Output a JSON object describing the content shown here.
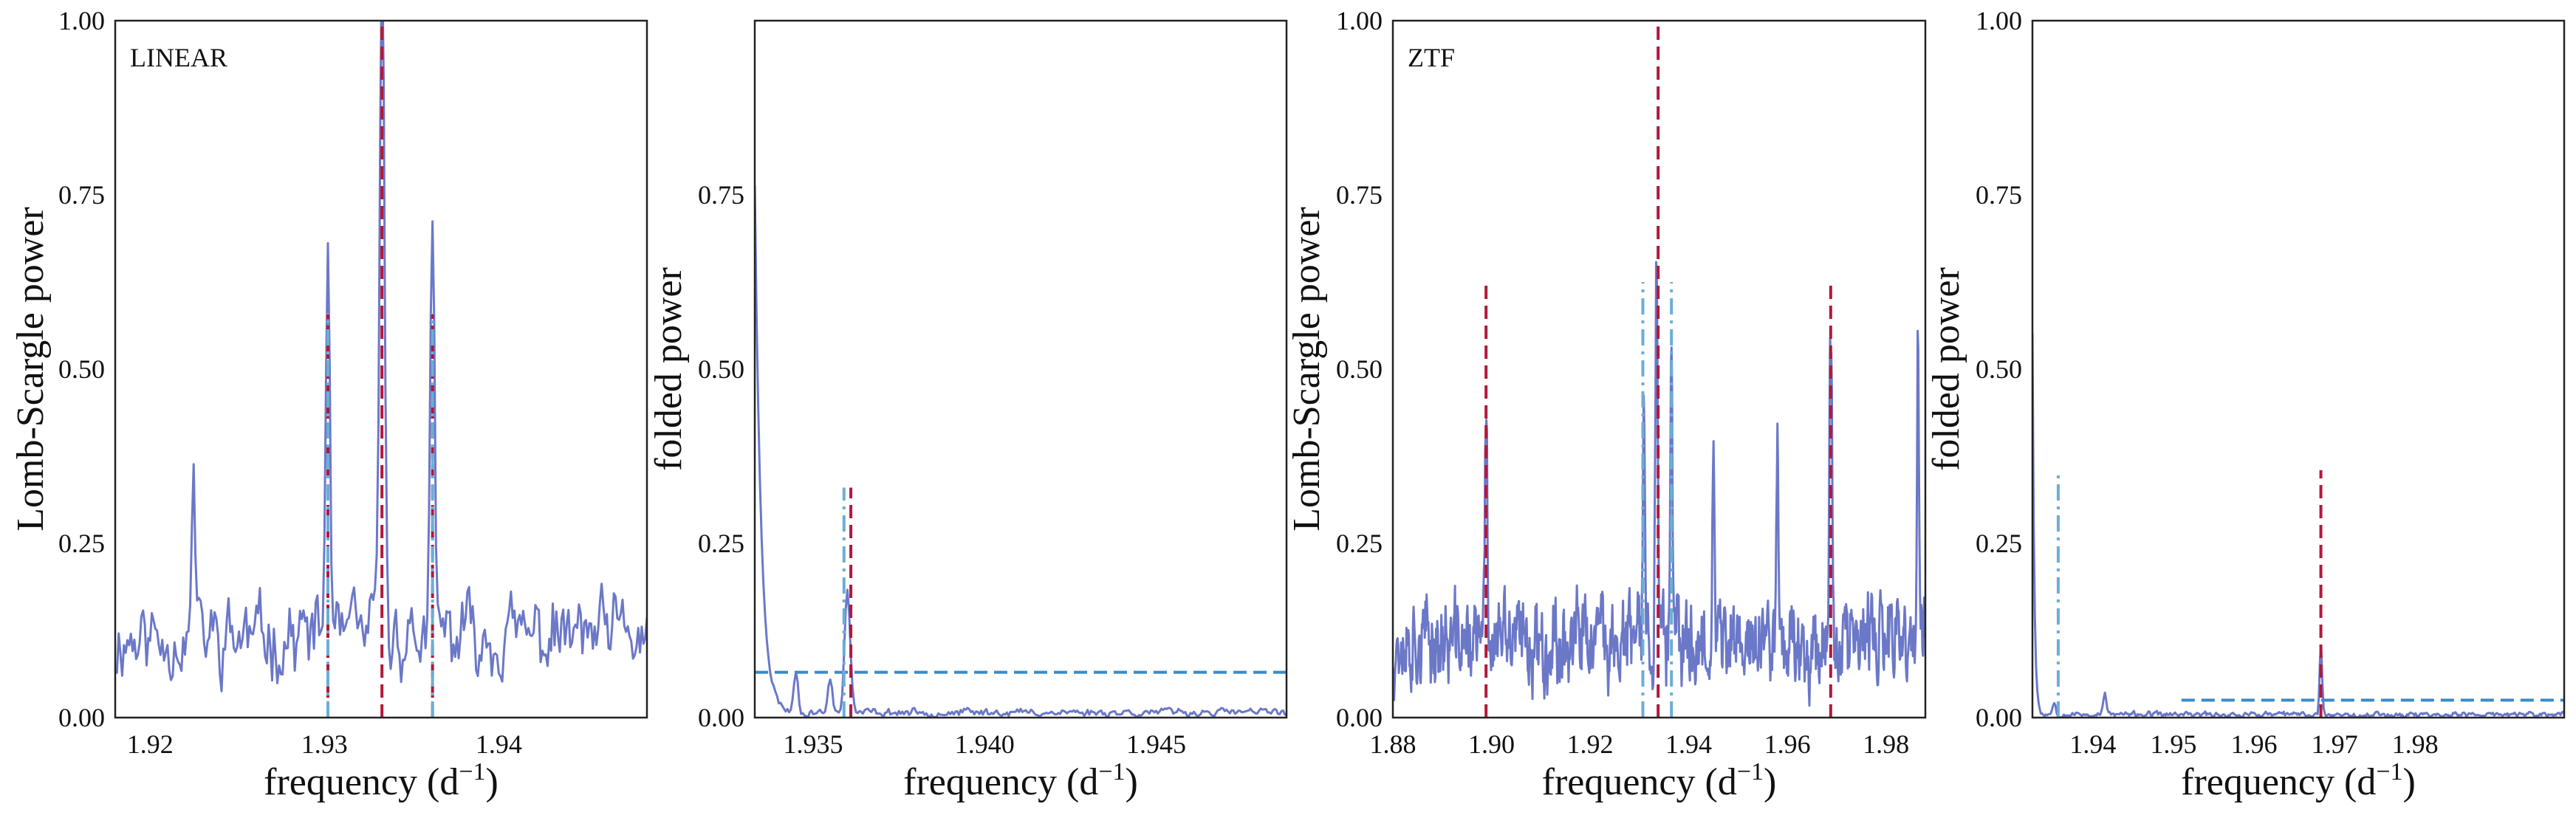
{
  "colors": {
    "series": "#6b78c8",
    "main_line": "#b2183a",
    "alias_line": "#6aaed6",
    "threshold": "#3a8bc8",
    "frame": "#222222"
  },
  "chart_data": [
    {
      "type": "line",
      "panel_label": "LINEAR",
      "xlabel": "frequency (d",
      "xlabel_sup": "−1",
      "xlabel_tail": ")",
      "ylabel": "Lomb-Scargle power",
      "xlim": [
        1.918,
        1.9485
      ],
      "ylim": [
        0,
        1.0
      ],
      "xticks": [
        1.92,
        1.93,
        1.94
      ],
      "xtick_labels": [
        "1.92",
        "1.93",
        "1.94"
      ],
      "yticks": [
        0,
        0.25,
        0.5,
        0.75,
        1.0
      ],
      "ytick_labels": [
        "0.00",
        "0.25",
        "0.50",
        "0.75",
        "1.00"
      ],
      "grid": false,
      "series": [
        {
          "style": "solid",
          "baseline": 0.08,
          "noise": 0.12,
          "seed": 11,
          "step": 0.0001,
          "peaks": [
            {
              "x": 1.9302,
              "h": 0.55,
              "w": 0.00012
            },
            {
              "x": 1.9333,
              "h": 0.97,
              "w": 0.00014
            },
            {
              "x": 1.9362,
              "h": 0.55,
              "w": 0.00012
            },
            {
              "x": 1.9225,
              "h": 0.23,
              "w": 0.0001
            }
          ]
        }
      ],
      "vlines": [
        {
          "x": 1.9333,
          "ymax": 1.0,
          "style": "dashed",
          "color": "main_line"
        },
        {
          "x": 1.9302,
          "ymax": 0.58,
          "style": "dashed",
          "color": "main_line"
        },
        {
          "x": 1.9362,
          "ymax": 0.58,
          "style": "dashed",
          "color": "main_line"
        },
        {
          "x": 1.9302,
          "ymax": 0.58,
          "style": "dashdot",
          "color": "alias_line"
        },
        {
          "x": 1.9362,
          "ymax": 0.58,
          "style": "dashdot",
          "color": "alias_line"
        }
      ],
      "hlines": []
    },
    {
      "type": "line",
      "panel_label": "",
      "xlabel": "frequency (d",
      "xlabel_sup": "−1",
      "xlabel_tail": ")",
      "ylabel": "folded power",
      "xlim": [
        1.9333,
        1.9488
      ],
      "ylim": [
        0,
        1.0
      ],
      "xticks": [
        1.935,
        1.94,
        1.945
      ],
      "xtick_labels": [
        "1.935",
        "1.940",
        "1.945"
      ],
      "yticks": [
        0,
        0.25,
        0.5,
        0.75
      ],
      "ytick_labels": [
        "0.00",
        "0.25",
        "0.50",
        "0.75"
      ],
      "grid": false,
      "series": [
        {
          "style": "solid",
          "baseline": 0.004,
          "noise": 0.012,
          "seed": 23,
          "step": 5e-05,
          "decay": {
            "x0": 1.9333,
            "h": 0.76,
            "scale": 0.00018
          },
          "peaks": [
            {
              "x": 1.936,
              "h": 0.18,
              "w": 8e-05
            },
            {
              "x": 1.9345,
              "h": 0.06,
              "w": 6e-05
            },
            {
              "x": 1.9355,
              "h": 0.05,
              "w": 6e-05
            }
          ]
        }
      ],
      "vlines": [
        {
          "x": 1.9361,
          "ymax": 0.33,
          "style": "dashed",
          "color": "main_line"
        },
        {
          "x": 1.9359,
          "ymax": 0.33,
          "style": "dashdot",
          "color": "alias_line"
        }
      ],
      "hlines": [
        {
          "y": 0.065,
          "xmin": 1.9333,
          "xmax": 1.9488,
          "style": "dashed",
          "color": "threshold"
        }
      ]
    },
    {
      "type": "line",
      "panel_label": "ZTF",
      "xlabel": "frequency (d",
      "xlabel_sup": "−1",
      "xlabel_tail": ")",
      "ylabel": "Lomb-Scargle power",
      "xlim": [
        1.88,
        1.988
      ],
      "ylim": [
        0,
        1.0
      ],
      "xticks": [
        1.88,
        1.9,
        1.92,
        1.94,
        1.96,
        1.98
      ],
      "xtick_labels": [
        "1.88",
        "1.90",
        "1.92",
        "1.94",
        "1.96",
        "1.98"
      ],
      "yticks": [
        0,
        0.25,
        0.5,
        0.75,
        1.0
      ],
      "ytick_labels": [
        "0.00",
        "0.25",
        "0.50",
        "0.75",
        "1.00"
      ],
      "grid": false,
      "series": [
        {
          "style": "solid",
          "baseline": 0.07,
          "noise": 0.13,
          "seed": 37,
          "step": 0.00012,
          "peaks": [
            {
              "x": 1.9335,
              "h": 0.55,
              "w": 0.00025
            },
            {
              "x": 1.9309,
              "h": 0.38,
              "w": 0.0002
            },
            {
              "x": 1.9365,
              "h": 0.38,
              "w": 0.0002
            },
            {
              "x": 1.9688,
              "h": 0.42,
              "w": 0.0003
            },
            {
              "x": 1.8989,
              "h": 0.33,
              "w": 0.00025
            },
            {
              "x": 1.9865,
              "h": 0.42,
              "w": 0.0002
            },
            {
              "x": 1.945,
              "h": 0.33,
              "w": 0.0002
            },
            {
              "x": 1.958,
              "h": 0.33,
              "w": 0.0002
            }
          ]
        }
      ],
      "vlines": [
        {
          "x": 1.9338,
          "ymax": 1.0,
          "style": "dashed",
          "color": "main_line"
        },
        {
          "x": 1.8989,
          "ymax": 0.625,
          "style": "dashed",
          "color": "main_line"
        },
        {
          "x": 1.9688,
          "ymax": 0.625,
          "style": "dashed",
          "color": "main_line"
        },
        {
          "x": 1.9307,
          "ymax": 0.625,
          "style": "dashdot",
          "color": "alias_line"
        },
        {
          "x": 1.9365,
          "ymax": 0.625,
          "style": "dashdot",
          "color": "alias_line"
        }
      ],
      "hlines": []
    },
    {
      "type": "line",
      "panel_label": "",
      "xlabel": "frequency (d",
      "xlabel_sup": "−1",
      "xlabel_tail": ")",
      "ylabel": "folded power",
      "xlim": [
        1.9325,
        1.9985
      ],
      "ylim": [
        0,
        1.0
      ],
      "xticks": [
        1.94,
        1.95,
        1.96,
        1.97,
        1.98
      ],
      "xtick_labels": [
        "1.94",
        "1.95",
        "1.96",
        "1.97",
        "1.98"
      ],
      "yticks": [
        0,
        0.25,
        0.5,
        0.75,
        1.0
      ],
      "ytick_labels": [
        "0.00",
        "0.25",
        "0.50",
        "0.75",
        "1.00"
      ],
      "grid": false,
      "series": [
        {
          "style": "solid",
          "baseline": 0.002,
          "noise": 0.008,
          "seed": 53,
          "step": 0.00015,
          "decay": {
            "x0": 1.9325,
            "h": 0.55,
            "scale": 0.00022
          },
          "peaks": [
            {
              "x": 1.9683,
              "h": 0.1,
              "w": 0.00015
            },
            {
              "x": 1.9415,
              "h": 0.03,
              "w": 0.0002
            },
            {
              "x": 1.9352,
              "h": 0.02,
              "w": 0.0002
            }
          ]
        }
      ],
      "vlines": [
        {
          "x": 1.9683,
          "ymax": 0.355,
          "style": "dashed",
          "color": "main_line"
        },
        {
          "x": 1.9357,
          "ymax": 0.355,
          "style": "dashdot",
          "color": "alias_line"
        }
      ],
      "hlines": [
        {
          "y": 0.025,
          "xmin": 1.951,
          "xmax": 1.9985,
          "style": "dashed",
          "color": "threshold"
        }
      ]
    }
  ]
}
